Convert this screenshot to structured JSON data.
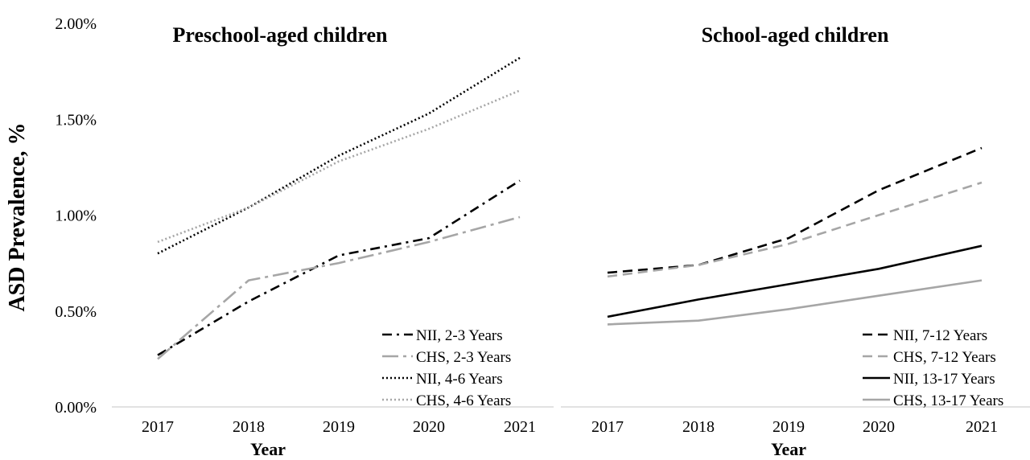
{
  "chart_data": {
    "type": "line",
    "ylabel": "ASD Prevalence, %",
    "y_ticks": [
      "0.00%",
      "0.50%",
      "1.00%",
      "1.50%",
      "2.00%"
    ],
    "ylim": [
      0,
      2.0
    ],
    "grid": false,
    "panels": [
      {
        "title": "Preschool-aged children",
        "xlabel": "Year",
        "x": [
          "2017",
          "2018",
          "2019",
          "2020",
          "2021"
        ],
        "legend_position": "bottom-right",
        "series": [
          {
            "name": "NII, 2-3 Years",
            "values": [
              0.27,
              0.55,
              0.79,
              0.88,
              1.18
            ],
            "color": "#000000",
            "dash": "dashdot"
          },
          {
            "name": "CHS, 2-3 Years",
            "values": [
              0.25,
              0.66,
              0.75,
              0.86,
              0.99
            ],
            "color": "#a6a6a6",
            "dash": "longdashdot"
          },
          {
            "name": "NII, 4-6 Years",
            "values": [
              0.8,
              1.04,
              1.31,
              1.53,
              1.82
            ],
            "color": "#000000",
            "dash": "dotted"
          },
          {
            "name": "CHS, 4-6 Years",
            "values": [
              0.86,
              1.04,
              1.28,
              1.45,
              1.65
            ],
            "color": "#a6a6a6",
            "dash": "dotted"
          }
        ]
      },
      {
        "title": "School-aged children",
        "xlabel": "Year",
        "x": [
          "2017",
          "2018",
          "2019",
          "2020",
          "2021"
        ],
        "legend_position": "bottom-right",
        "series": [
          {
            "name": "NII, 7-12 Years",
            "values": [
              0.7,
              0.74,
              0.88,
              1.13,
              1.35
            ],
            "color": "#000000",
            "dash": "dashed"
          },
          {
            "name": "CHS, 7-12 Years",
            "values": [
              0.68,
              0.74,
              0.85,
              1.0,
              1.17
            ],
            "color": "#a6a6a6",
            "dash": "dashed"
          },
          {
            "name": "NII, 13-17 Years",
            "values": [
              0.47,
              0.56,
              0.64,
              0.72,
              0.84
            ],
            "color": "#000000",
            "dash": "solid"
          },
          {
            "name": "CHS, 13-17 Years",
            "values": [
              0.43,
              0.45,
              0.51,
              0.58,
              0.66
            ],
            "color": "#a6a6a6",
            "dash": "solid"
          }
        ]
      }
    ]
  }
}
